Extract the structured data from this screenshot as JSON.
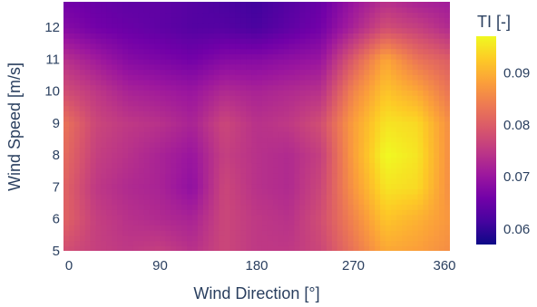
{
  "chart_data": {
    "type": "heatmap",
    "xlabel": "Wind Direction [°]",
    "ylabel": "Wind Speed [m/s]",
    "xlim": [
      0,
      360
    ],
    "ylim": [
      5,
      12.8
    ],
    "x_ticks": [
      "0",
      "90",
      "180",
      "270",
      "360"
    ],
    "y_ticks": [
      "5",
      "6",
      "7",
      "8",
      "9",
      "10",
      "11",
      "12"
    ],
    "colorbar": {
      "title": "TI [-]",
      "range": [
        0.057,
        0.097
      ],
      "ticks": [
        "0.06",
        "0.07",
        "0.08",
        "0.09"
      ],
      "colorscale": [
        "#0d0887",
        "#46039f",
        "#7201a8",
        "#9c179e",
        "#bd3786",
        "#d8576b",
        "#ed7953",
        "#fb9f3a",
        "#fdca26",
        "#f0f921"
      ]
    },
    "x": [
      0,
      30,
      60,
      90,
      120,
      150,
      180,
      210,
      240,
      270,
      300,
      330,
      360
    ],
    "y": [
      5,
      6,
      7,
      8,
      9,
      10,
      11,
      12,
      12.8
    ],
    "z": [
      [
        0.078,
        0.076,
        0.075,
        0.076,
        0.074,
        0.077,
        0.075,
        0.075,
        0.077,
        0.083,
        0.089,
        0.088,
        0.086
      ],
      [
        0.081,
        0.076,
        0.074,
        0.073,
        0.072,
        0.077,
        0.075,
        0.074,
        0.078,
        0.085,
        0.092,
        0.09,
        0.087
      ],
      [
        0.081,
        0.075,
        0.073,
        0.072,
        0.069,
        0.077,
        0.074,
        0.073,
        0.077,
        0.087,
        0.095,
        0.094,
        0.086
      ],
      [
        0.082,
        0.076,
        0.074,
        0.072,
        0.07,
        0.076,
        0.074,
        0.073,
        0.076,
        0.088,
        0.097,
        0.095,
        0.086
      ],
      [
        0.083,
        0.077,
        0.075,
        0.074,
        0.072,
        0.077,
        0.074,
        0.075,
        0.078,
        0.088,
        0.095,
        0.094,
        0.086
      ],
      [
        0.078,
        0.075,
        0.072,
        0.071,
        0.07,
        0.073,
        0.072,
        0.073,
        0.074,
        0.085,
        0.092,
        0.089,
        0.083
      ],
      [
        0.074,
        0.071,
        0.068,
        0.067,
        0.066,
        0.068,
        0.068,
        0.069,
        0.07,
        0.08,
        0.089,
        0.083,
        0.08
      ],
      [
        0.068,
        0.066,
        0.065,
        0.064,
        0.063,
        0.063,
        0.062,
        0.064,
        0.066,
        0.072,
        0.078,
        0.076,
        0.073
      ],
      [
        0.066,
        0.065,
        0.064,
        0.064,
        0.063,
        0.062,
        0.061,
        0.063,
        0.065,
        0.07,
        0.074,
        0.072,
        0.071
      ]
    ]
  }
}
